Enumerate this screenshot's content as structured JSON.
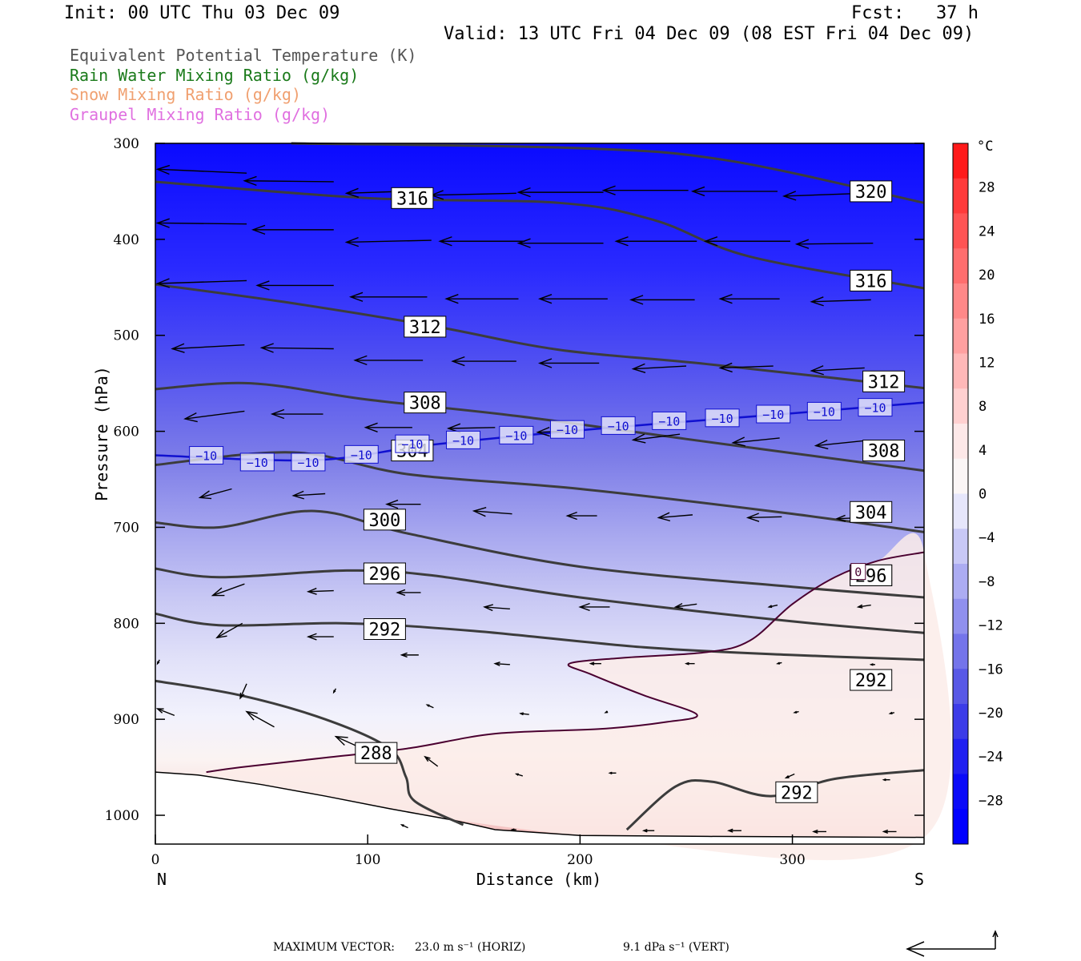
{
  "header": {
    "init": "Init: 00 UTC Thu 03 Dec 09",
    "fcst": "Fcst:   37 h",
    "valid": "Valid: 13 UTC Fri 04 Dec 09 (08 EST Fri 04 Dec 09)"
  },
  "fields": [
    {
      "label": "Equivalent Potential Temperature (K)",
      "color": "#555555"
    },
    {
      "label": "Rain Water Mixing Ratio (g/kg)",
      "color": "#1a7a1a"
    },
    {
      "label": "Snow Mixing Ratio (g/kg)",
      "color": "#f0a070"
    },
    {
      "label": "Graupel Mixing Ratio (g/kg)",
      "color": "#e070e0"
    }
  ],
  "footer": {
    "max_vector_label": "MAXIMUM VECTOR:",
    "horiz": "23.0 m s⁻¹ (HORIZ)",
    "vert": "9.1 dPa s⁻¹ (VERT)"
  },
  "chart_data": {
    "type": "cross-section",
    "xlabel": "Distance (km)",
    "ylabel": "Pressure (hPa)",
    "x_ticks": [
      0,
      100,
      200,
      300
    ],
    "xlim": [
      0,
      362
    ],
    "y_ticks": [
      300,
      400,
      500,
      600,
      700,
      800,
      900,
      1000
    ],
    "ylim": [
      300,
      1030
    ],
    "end_labels": {
      "left": "N",
      "right": "S"
    },
    "colorbar": {
      "unit": "°C",
      "ticks": [
        "28",
        "24",
        "20",
        "16",
        "12",
        "8",
        "4",
        "0",
        "−4",
        "−8",
        "−12",
        "−16",
        "−20",
        "−24",
        "−28"
      ],
      "range": [
        -32,
        32
      ]
    },
    "theta_e_contours": [
      {
        "value": 320,
        "points": [
          [
            64,
            300
          ],
          [
            200,
            305
          ],
          [
            270,
            318
          ],
          [
            362,
            362
          ]
        ],
        "labels": [
          [
            337,
            350
          ]
        ]
      },
      {
        "value": 316,
        "points": [
          [
            0,
            340
          ],
          [
            100,
            357
          ],
          [
            190,
            362
          ],
          [
            235,
            380
          ],
          [
            280,
            418
          ],
          [
            362,
            451
          ]
        ],
        "labels": [
          [
            121,
            357
          ],
          [
            337,
            443
          ]
        ]
      },
      {
        "value": 312,
        "points": [
          [
            0,
            447
          ],
          [
            60,
            465
          ],
          [
            130,
            490
          ],
          [
            190,
            515
          ],
          [
            260,
            530
          ],
          [
            362,
            555
          ]
        ],
        "labels": [
          [
            127,
            491
          ],
          [
            343,
            548
          ]
        ]
      },
      {
        "value": 308,
        "points": [
          [
            0,
            556
          ],
          [
            45,
            550
          ],
          [
            100,
            567
          ],
          [
            170,
            584
          ],
          [
            250,
            608
          ],
          [
            362,
            641
          ]
        ],
        "labels": [
          [
            127,
            570
          ],
          [
            343,
            620
          ]
        ]
      },
      {
        "value": 304,
        "points": [
          [
            0,
            635
          ],
          [
            65,
            622
          ],
          [
            120,
            645
          ],
          [
            200,
            660
          ],
          [
            300,
            686
          ],
          [
            362,
            705
          ]
        ],
        "labels": [
          [
            121,
            620
          ],
          [
            337,
            684
          ]
        ]
      },
      {
        "value": 300,
        "points": [
          [
            0,
            695
          ],
          [
            30,
            700
          ],
          [
            75,
            683
          ],
          [
            120,
            707
          ],
          [
            200,
            741
          ],
          [
            300,
            762
          ],
          [
            362,
            773
          ]
        ],
        "labels": [
          [
            108,
            692
          ],
          [
            337,
            750
          ]
        ]
      },
      {
        "value": 296,
        "points": [
          [
            0,
            743
          ],
          [
            30,
            752
          ],
          [
            90,
            745
          ],
          [
            130,
            750
          ],
          [
            200,
            773
          ],
          [
            300,
            798
          ],
          [
            362,
            810
          ]
        ],
        "labels": [
          [
            108,
            748
          ],
          [
            337,
            750
          ]
        ]
      },
      {
        "value": 292,
        "points": [
          [
            0,
            790
          ],
          [
            30,
            802
          ],
          [
            90,
            800
          ],
          [
            150,
            808
          ],
          [
            230,
            825
          ],
          [
            300,
            833
          ],
          [
            362,
            838
          ]
        ],
        "labels": [
          [
            108,
            806
          ],
          [
            337,
            859
          ]
        ]
      },
      {
        "value": 292,
        "points": [
          [
            222,
            1015
          ],
          [
            245,
            970
          ],
          [
            262,
            965
          ],
          [
            290,
            980
          ],
          [
            320,
            962
          ],
          [
            362,
            953
          ]
        ],
        "labels": [
          [
            302,
            976
          ]
        ]
      },
      {
        "value": 288,
        "points": [
          [
            0,
            860
          ],
          [
            40,
            875
          ],
          [
            80,
            900
          ],
          [
            110,
            930
          ],
          [
            118,
            960
          ],
          [
            122,
            985
          ],
          [
            145,
            1010
          ]
        ],
        "labels": [
          [
            104,
            935
          ]
        ]
      }
    ],
    "isotherm_minus10": {
      "value": -10,
      "points": [
        [
          0,
          625
        ],
        [
          75,
          630
        ],
        [
          130,
          614
        ],
        [
          210,
          597
        ],
        [
          290,
          583
        ],
        [
          362,
          570
        ]
      ],
      "labels": [
        [
          24,
          625
        ],
        [
          48,
          632
        ],
        [
          72,
          632
        ],
        [
          97,
          624
        ],
        [
          121,
          613
        ],
        [
          145,
          609
        ],
        [
          170,
          604
        ],
        [
          194,
          598
        ],
        [
          218,
          594
        ],
        [
          242,
          589
        ],
        [
          267,
          586
        ],
        [
          291,
          582
        ],
        [
          315,
          579
        ],
        [
          339,
          575
        ]
      ]
    },
    "isotherm_zero": {
      "value": 0,
      "points": [
        [
          24,
          955
        ],
        [
          40,
          950
        ],
        [
          80,
          940
        ],
        [
          120,
          930
        ],
        [
          160,
          915
        ],
        [
          210,
          910
        ],
        [
          240,
          903
        ],
        [
          255,
          895
        ],
        [
          230,
          875
        ],
        [
          205,
          853
        ],
        [
          195,
          842
        ],
        [
          220,
          836
        ],
        [
          260,
          830
        ],
        [
          280,
          818
        ],
        [
          300,
          780
        ],
        [
          320,
          752
        ],
        [
          340,
          735
        ],
        [
          362,
          726
        ]
      ],
      "labels": [
        [
          331,
          746
        ]
      ]
    },
    "terrain": [
      [
        0,
        955
      ],
      [
        20,
        958
      ],
      [
        50,
        968
      ],
      [
        80,
        980
      ],
      [
        110,
        993
      ],
      [
        140,
        1005
      ],
      [
        160,
        1015
      ],
      [
        200,
        1021
      ],
      [
        260,
        1022
      ],
      [
        362,
        1023
      ]
    ],
    "wind_vectors": [
      {
        "x": 1,
        "p": 327,
        "dx": 42,
        "dp": 4
      },
      {
        "x": 42,
        "p": 339,
        "dx": 42,
        "dp": 1
      },
      {
        "x": 90,
        "p": 352,
        "dx": 40,
        "dp": -3
      },
      {
        "x": 130,
        "p": 354,
        "dx": 40,
        "dp": -2
      },
      {
        "x": 171,
        "p": 351,
        "dx": 40,
        "dp": 0
      },
      {
        "x": 211,
        "p": 349,
        "dx": 40,
        "dp": 0
      },
      {
        "x": 253,
        "p": 350,
        "dx": 40,
        "dp": 0
      },
      {
        "x": 296,
        "p": 355,
        "dx": 38,
        "dp": -3
      },
      {
        "x": 1,
        "p": 383,
        "dx": 42,
        "dp": 1
      },
      {
        "x": 46,
        "p": 390,
        "dx": 38,
        "dp": 0
      },
      {
        "x": 90,
        "p": 403,
        "dx": 40,
        "dp": -2
      },
      {
        "x": 134,
        "p": 402,
        "dx": 40,
        "dp": 0
      },
      {
        "x": 171,
        "p": 404,
        "dx": 40,
        "dp": 0
      },
      {
        "x": 217,
        "p": 402,
        "dx": 38,
        "dp": 0
      },
      {
        "x": 259,
        "p": 402,
        "dx": 40,
        "dp": 0
      },
      {
        "x": 302,
        "p": 405,
        "dx": 36,
        "dp": -1
      },
      {
        "x": 1,
        "p": 446,
        "dx": 42,
        "dp": -3
      },
      {
        "x": 48,
        "p": 448,
        "dx": 36,
        "dp": 0
      },
      {
        "x": 92,
        "p": 460,
        "dx": 36,
        "dp": 0
      },
      {
        "x": 137,
        "p": 462,
        "dx": 34,
        "dp": 0
      },
      {
        "x": 181,
        "p": 462,
        "dx": 32,
        "dp": 0
      },
      {
        "x": 224,
        "p": 463,
        "dx": 30,
        "dp": 0
      },
      {
        "x": 266,
        "p": 462,
        "dx": 28,
        "dp": 0
      },
      {
        "x": 309,
        "p": 465,
        "dx": 28,
        "dp": -2
      },
      {
        "x": 8,
        "p": 514,
        "dx": 34,
        "dp": -4
      },
      {
        "x": 50,
        "p": 513,
        "dx": 34,
        "dp": 1
      },
      {
        "x": 94,
        "p": 526,
        "dx": 32,
        "dp": 0
      },
      {
        "x": 140,
        "p": 527,
        "dx": 30,
        "dp": 0
      },
      {
        "x": 181,
        "p": 529,
        "dx": 28,
        "dp": 0
      },
      {
        "x": 225,
        "p": 535,
        "dx": 25,
        "dp": -3
      },
      {
        "x": 266,
        "p": 534,
        "dx": 25,
        "dp": -2
      },
      {
        "x": 309,
        "p": 537,
        "dx": 25,
        "dp": -3
      },
      {
        "x": 14,
        "p": 587,
        "dx": 28,
        "dp": -8
      },
      {
        "x": 55,
        "p": 582,
        "dx": 24,
        "dp": 0
      },
      {
        "x": 99,
        "p": 596,
        "dx": 22,
        "dp": 0
      },
      {
        "x": 138,
        "p": 597,
        "dx": 22,
        "dp": -1
      },
      {
        "x": 180,
        "p": 601,
        "dx": 20,
        "dp": -2
      },
      {
        "x": 225,
        "p": 609,
        "dx": 22,
        "dp": -6
      },
      {
        "x": 272,
        "p": 612,
        "dx": 22,
        "dp": -5
      },
      {
        "x": 311,
        "p": 615,
        "dx": 22,
        "dp": -5
      },
      {
        "x": 21,
        "p": 669,
        "dx": 15,
        "dp": -9
      },
      {
        "x": 65,
        "p": 667,
        "dx": 15,
        "dp": -2
      },
      {
        "x": 109,
        "p": 676,
        "dx": 16,
        "dp": 0
      },
      {
        "x": 150,
        "p": 683,
        "dx": 18,
        "dp": 3
      },
      {
        "x": 194,
        "p": 688,
        "dx": 14,
        "dp": 0
      },
      {
        "x": 237,
        "p": 690,
        "dx": 16,
        "dp": -3
      },
      {
        "x": 279,
        "p": 690,
        "dx": 16,
        "dp": -1
      },
      {
        "x": 321,
        "p": 691,
        "dx": 12,
        "dp": -1
      },
      {
        "x": 27,
        "p": 771,
        "dx": 15,
        "dp": -12
      },
      {
        "x": 72,
        "p": 767,
        "dx": 12,
        "dp": -1
      },
      {
        "x": 114,
        "p": 768,
        "dx": 11,
        "dp": 0
      },
      {
        "x": 155,
        "p": 783,
        "dx": 12,
        "dp": 2
      },
      {
        "x": 200,
        "p": 783,
        "dx": 14,
        "dp": 0
      },
      {
        "x": 245,
        "p": 783,
        "dx": 10,
        "dp": -3
      },
      {
        "x": 289,
        "p": 783,
        "dx": 4,
        "dp": -2
      },
      {
        "x": 331,
        "p": 783,
        "dx": 6,
        "dp": -2
      },
      {
        "x": 29,
        "p": 815,
        "dx": 12,
        "dp": -15
      },
      {
        "x": 72,
        "p": 814,
        "dx": 12,
        "dp": 0
      },
      {
        "x": 116,
        "p": 833,
        "dx": 8,
        "dp": 0
      },
      {
        "x": 160,
        "p": 842,
        "dx": 7,
        "dp": 1
      },
      {
        "x": 205,
        "p": 842,
        "dx": 5,
        "dp": 0
      },
      {
        "x": 250,
        "p": 842,
        "dx": 4,
        "dp": 0
      },
      {
        "x": 293,
        "p": 842,
        "dx": 2,
        "dp": -1
      },
      {
        "x": 337,
        "p": 843,
        "dx": 2,
        "dp": 0
      },
      {
        "x": 1,
        "p": 842,
        "dx": 1,
        "dp": -4
      },
      {
        "x": 40,
        "p": 878,
        "dx": 3,
        "dp": -15
      },
      {
        "x": 84,
        "p": 872,
        "dx": 1,
        "dp": -4
      },
      {
        "x": 128,
        "p": 885,
        "dx": 3,
        "dp": 3
      },
      {
        "x": 172,
        "p": 894,
        "dx": 4,
        "dp": 1
      },
      {
        "x": 212,
        "p": 893,
        "dx": 1,
        "dp": -1
      },
      {
        "x": 301,
        "p": 893,
        "dx": 2,
        "dp": -1
      },
      {
        "x": 346,
        "p": 894,
        "dx": 2,
        "dp": -1
      },
      {
        "x": 1,
        "p": 889,
        "dx": 8,
        "dp": 7
      },
      {
        "x": 43,
        "p": 892,
        "dx": 13,
        "dp": 16
      },
      {
        "x": 85,
        "p": 918,
        "dx": 15,
        "dp": 15
      },
      {
        "x": 127,
        "p": 939,
        "dx": 6,
        "dp": 10
      },
      {
        "x": 170,
        "p": 957,
        "dx": 3,
        "dp": 2
      },
      {
        "x": 214,
        "p": 956,
        "dx": 3,
        "dp": 0
      },
      {
        "x": 297,
        "p": 961,
        "dx": 4,
        "dp": -4
      },
      {
        "x": 343,
        "p": 963,
        "dx": 3,
        "dp": 0
      },
      {
        "x": 116,
        "p": 1010,
        "dx": 3,
        "dp": 3
      },
      {
        "x": 168,
        "p": 1015,
        "dx": 2,
        "dp": 0
      },
      {
        "x": 230,
        "p": 1016,
        "dx": 5,
        "dp": 0
      },
      {
        "x": 270,
        "p": 1016,
        "dx": 6,
        "dp": 0
      },
      {
        "x": 310,
        "p": 1017,
        "dx": 6,
        "dp": 0
      },
      {
        "x": 343,
        "p": 1017,
        "dx": 6,
        "dp": 0
      }
    ]
  }
}
